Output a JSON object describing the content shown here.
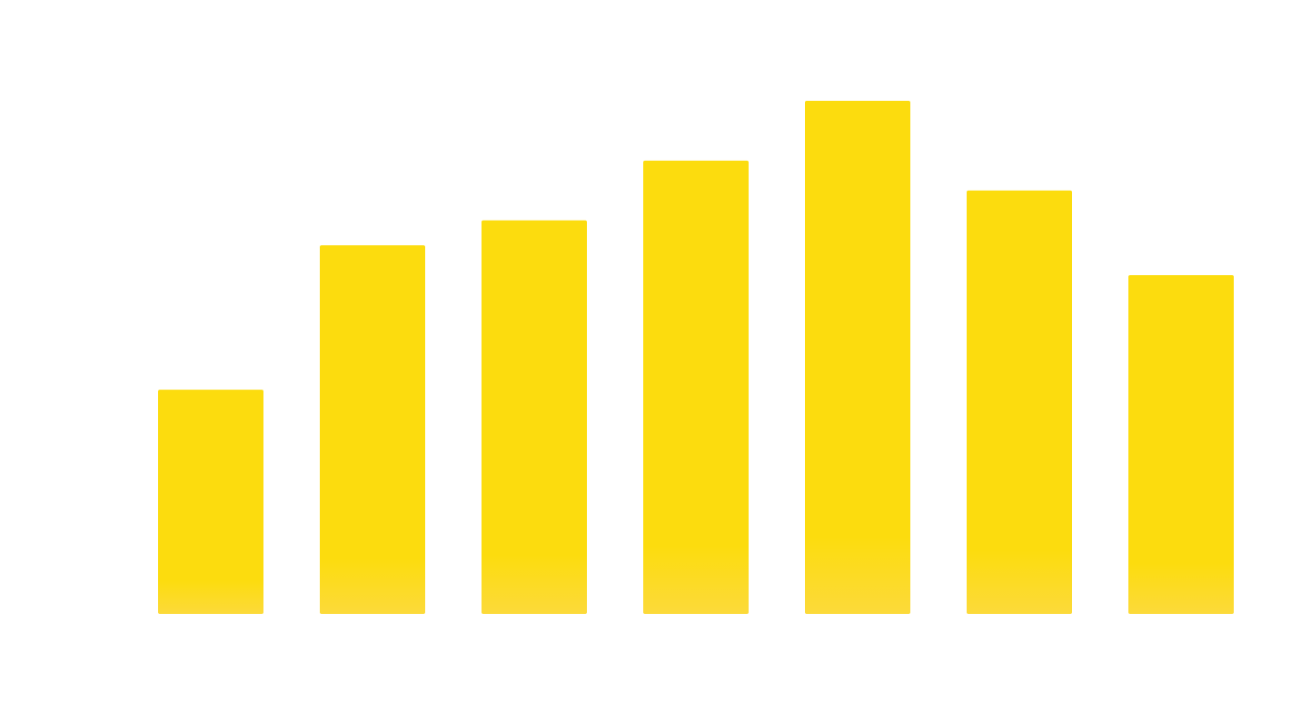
{
  "chart_data": {
    "type": "bar",
    "categories": [
      "",
      "",
      "",
      "",
      "",
      "",
      ""
    ],
    "values": [
      45,
      74,
      79,
      91,
      103,
      85,
      68
    ],
    "ylim": [
      0,
      103
    ],
    "grid": false,
    "legend": "none",
    "colors": {
      "bar_top": "#FCDC0E",
      "bar_bottom": "#FCDA3A"
    }
  }
}
